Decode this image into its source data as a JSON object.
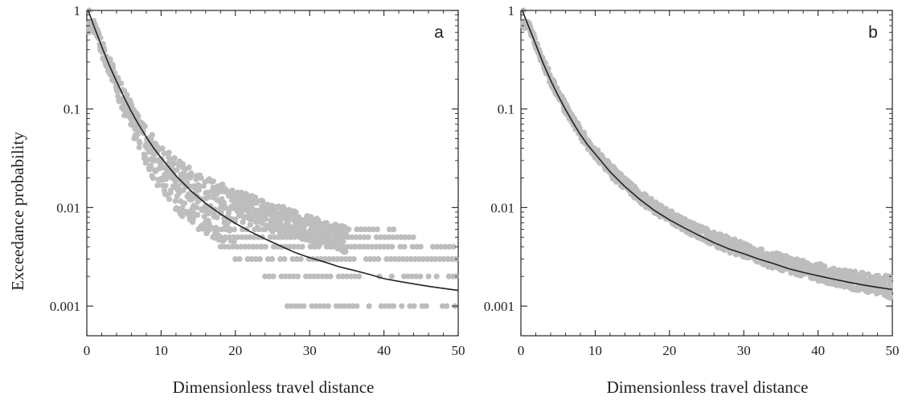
{
  "figure": {
    "ylabel": "Exceedance probability",
    "xlabel": "Dimensionless travel distance"
  },
  "chart_data": [
    {
      "type": "scatter",
      "panel": "a",
      "panel_label": "a",
      "xlabel": "Dimensionless travel distance",
      "ylabel": "Exceedance probability",
      "xlim": [
        0,
        50
      ],
      "ylim": [
        0.0005,
        1
      ],
      "yscale": "log",
      "x_ticks": [
        0,
        10,
        20,
        30,
        40,
        50
      ],
      "x_tick_labels": [
        "0",
        "10",
        "20",
        "30",
        "40",
        "50"
      ],
      "y_ticks": [
        1,
        0.1,
        0.01,
        0.001
      ],
      "y_tick_labels": [
        "1",
        "0.1",
        "0.01",
        "0.001"
      ],
      "grid": false,
      "series": [
        {
          "kind": "scatter-band",
          "color": "#bdbdbd",
          "points": [
            [
              0.2,
              1
            ],
            [
              1,
              0.7
            ],
            [
              2,
              0.42
            ],
            [
              3,
              0.27
            ],
            [
              4,
              0.18
            ],
            [
              5,
              0.12
            ],
            [
              6,
              0.083
            ],
            [
              7,
              0.06
            ],
            [
              8,
              0.044
            ],
            [
              9,
              0.034
            ],
            [
              10,
              0.027
            ],
            [
              11,
              0.022
            ],
            [
              12,
              0.018
            ],
            [
              13,
              0.015
            ],
            [
              14,
              0.0132
            ],
            [
              15,
              0.0118
            ],
            [
              16,
              0.0105
            ],
            [
              17,
              0.0095
            ],
            [
              18,
              0.0088
            ],
            [
              19,
              0.0082
            ],
            [
              20,
              0.0076
            ],
            [
              21,
              0.0071
            ],
            [
              22,
              0.0067
            ],
            [
              23,
              0.0063
            ],
            [
              24,
              0.006
            ],
            [
              25,
              0.0057
            ],
            [
              26,
              0.0054
            ],
            [
              27,
              0.0052
            ],
            [
              28,
              0.005
            ],
            [
              29,
              0.0048
            ],
            [
              30,
              0.0046
            ]
          ],
          "band_low": [
            [
              1,
              0.6
            ],
            [
              2,
              0.36
            ],
            [
              3,
              0.22
            ],
            [
              4,
              0.14
            ],
            [
              5,
              0.09
            ],
            [
              6,
              0.06
            ],
            [
              7,
              0.04
            ],
            [
              8,
              0.027
            ],
            [
              9,
              0.019
            ],
            [
              10,
              0.014
            ],
            [
              11,
              0.011
            ],
            [
              12,
              0.009
            ],
            [
              13,
              0.0078
            ],
            [
              14,
              0.0068
            ],
            [
              15,
              0.006
            ],
            [
              16,
              0.0055
            ],
            [
              17,
              0.005
            ],
            [
              18,
              0.0046
            ],
            [
              19,
              0.0043
            ],
            [
              20,
              0.004
            ]
          ],
          "band_high": [
            [
              1,
              0.8
            ],
            [
              2,
              0.5
            ],
            [
              3,
              0.33
            ],
            [
              4,
              0.23
            ],
            [
              5,
              0.16
            ],
            [
              6,
              0.115
            ],
            [
              7,
              0.085
            ],
            [
              8,
              0.066
            ],
            [
              9,
              0.053
            ],
            [
              10,
              0.044
            ],
            [
              11,
              0.037
            ],
            [
              12,
              0.032
            ],
            [
              13,
              0.028
            ],
            [
              14,
              0.025
            ],
            [
              15,
              0.023
            ],
            [
              16,
              0.021
            ],
            [
              17,
              0.0195
            ],
            [
              18,
              0.018
            ],
            [
              19,
              0.0168
            ],
            [
              20,
              0.0155
            ],
            [
              21,
              0.0145
            ],
            [
              22,
              0.0135
            ],
            [
              23,
              0.0125
            ],
            [
              24,
              0.0115
            ],
            [
              25,
              0.011
            ],
            [
              26,
              0.0104
            ],
            [
              27,
              0.0098
            ],
            [
              28,
              0.0092
            ],
            [
              29,
              0.0087
            ],
            [
              30,
              0.0082
            ],
            [
              31,
              0.0078
            ],
            [
              32,
              0.0074
            ],
            [
              33,
              0.007
            ],
            [
              34,
              0.0066
            ],
            [
              35,
              0.0063
            ]
          ],
          "discrete_rows": [
            {
              "y": 0.006,
              "x_min": 16,
              "x_max": 42
            },
            {
              "y": 0.005,
              "x_min": 17,
              "x_max": 44
            },
            {
              "y": 0.004,
              "x_min": 18,
              "x_max": 50
            },
            {
              "y": 0.003,
              "x_min": 20,
              "x_max": 50
            },
            {
              "y": 0.002,
              "x_min": 24,
              "x_max": 50
            },
            {
              "y": 0.001,
              "x_min": 27,
              "x_max": 50
            }
          ]
        },
        {
          "kind": "line",
          "color": "#222222",
          "points": [
            [
              0.2,
              1
            ],
            [
              0.5,
              0.86
            ],
            [
              1,
              0.68
            ],
            [
              1.5,
              0.54
            ],
            [
              2,
              0.43
            ],
            [
              3,
              0.28
            ],
            [
              4,
              0.19
            ],
            [
              5,
              0.132
            ],
            [
              6,
              0.094
            ],
            [
              7,
              0.069
            ],
            [
              8,
              0.052
            ],
            [
              9,
              0.04
            ],
            [
              10,
              0.032
            ],
            [
              12,
              0.021
            ],
            [
              14,
              0.0148
            ],
            [
              16,
              0.011
            ],
            [
              18,
              0.0086
            ],
            [
              20,
              0.0069
            ],
            [
              22,
              0.0057
            ],
            [
              24,
              0.0048
            ],
            [
              26,
              0.0041
            ],
            [
              28,
              0.0035
            ],
            [
              30,
              0.0031
            ],
            [
              32,
              0.0028
            ],
            [
              34,
              0.0025
            ],
            [
              36,
              0.0023
            ],
            [
              38,
              0.0021
            ],
            [
              40,
              0.0019
            ],
            [
              42,
              0.00178
            ],
            [
              44,
              0.00168
            ],
            [
              46,
              0.00159
            ],
            [
              48,
              0.00151
            ],
            [
              50,
              0.00144
            ]
          ]
        }
      ]
    },
    {
      "type": "scatter",
      "panel": "b",
      "panel_label": "b",
      "xlabel": "Dimensionless travel distance",
      "ylabel": "",
      "xlim": [
        0,
        50
      ],
      "ylim": [
        0.0005,
        1
      ],
      "yscale": "log",
      "x_ticks": [
        0,
        10,
        20,
        30,
        40,
        50
      ],
      "x_tick_labels": [
        "0",
        "10",
        "20",
        "30",
        "40",
        "50"
      ],
      "y_ticks": [
        1,
        0.1,
        0.01,
        0.001
      ],
      "y_tick_labels": [
        "1",
        "0.1",
        "0.01",
        "0.001"
      ],
      "grid": false,
      "series": [
        {
          "kind": "scatter-band",
          "color": "#bdbdbd",
          "points": [
            [
              0.2,
              1
            ],
            [
              1,
              0.72
            ],
            [
              2,
              0.46
            ],
            [
              3,
              0.3
            ],
            [
              4,
              0.2
            ],
            [
              5,
              0.14
            ],
            [
              6,
              0.1
            ],
            [
              7,
              0.075
            ],
            [
              8,
              0.057
            ],
            [
              9,
              0.045
            ],
            [
              10,
              0.036
            ],
            [
              12,
              0.024
            ],
            [
              14,
              0.017
            ],
            [
              16,
              0.0128
            ],
            [
              18,
              0.0099
            ],
            [
              20,
              0.008
            ],
            [
              22,
              0.0066
            ],
            [
              24,
              0.0055
            ],
            [
              26,
              0.0047
            ],
            [
              28,
              0.0041
            ],
            [
              30,
              0.0036
            ],
            [
              32,
              0.0032
            ],
            [
              34,
              0.0029
            ],
            [
              36,
              0.0026
            ],
            [
              38,
              0.0024
            ],
            [
              40,
              0.0022
            ],
            [
              42,
              0.002
            ],
            [
              44,
              0.0019
            ],
            [
              46,
              0.00175
            ],
            [
              48,
              0.00165
            ],
            [
              50,
              0.00155
            ]
          ],
          "band_low": [
            [
              1,
              0.66
            ],
            [
              2,
              0.42
            ],
            [
              3,
              0.27
            ],
            [
              4,
              0.18
            ],
            [
              5,
              0.125
            ],
            [
              6,
              0.09
            ],
            [
              7,
              0.067
            ],
            [
              8,
              0.051
            ],
            [
              9,
              0.04
            ],
            [
              10,
              0.032
            ],
            [
              12,
              0.021
            ],
            [
              14,
              0.015
            ],
            [
              16,
              0.0112
            ],
            [
              18,
              0.0087
            ],
            [
              20,
              0.007
            ],
            [
              22,
              0.0058
            ],
            [
              24,
              0.0048
            ],
            [
              26,
              0.0041
            ],
            [
              28,
              0.0035
            ],
            [
              30,
              0.0031
            ],
            [
              32,
              0.0027
            ],
            [
              34,
              0.0024
            ],
            [
              36,
              0.0022
            ],
            [
              38,
              0.002
            ],
            [
              40,
              0.0018
            ],
            [
              42,
              0.00165
            ],
            [
              44,
              0.0015
            ],
            [
              46,
              0.0014
            ],
            [
              48,
              0.0013
            ],
            [
              50,
              0.0012
            ]
          ],
          "band_high": [
            [
              1,
              0.78
            ],
            [
              2,
              0.5
            ],
            [
              3,
              0.33
            ],
            [
              4,
              0.23
            ],
            [
              5,
              0.16
            ],
            [
              6,
              0.115
            ],
            [
              7,
              0.085
            ],
            [
              8,
              0.065
            ],
            [
              9,
              0.051
            ],
            [
              10,
              0.041
            ],
            [
              12,
              0.028
            ],
            [
              14,
              0.02
            ],
            [
              16,
              0.015
            ],
            [
              18,
              0.0116
            ],
            [
              20,
              0.0094
            ],
            [
              22,
              0.0078
            ],
            [
              24,
              0.0066
            ],
            [
              26,
              0.0057
            ],
            [
              28,
              0.005
            ],
            [
              30,
              0.0044
            ],
            [
              32,
              0.0039
            ],
            [
              34,
              0.0035
            ],
            [
              36,
              0.0032
            ],
            [
              38,
              0.0029
            ],
            [
              40,
              0.0027
            ],
            [
              42,
              0.0025
            ],
            [
              44,
              0.0023
            ],
            [
              46,
              0.0022
            ],
            [
              48,
              0.0021
            ],
            [
              50,
              0.002
            ]
          ],
          "discrete_rows": []
        },
        {
          "kind": "line",
          "color": "#222222",
          "points": [
            [
              0.2,
              1
            ],
            [
              0.5,
              0.87
            ],
            [
              1,
              0.7
            ],
            [
              1.5,
              0.56
            ],
            [
              2,
              0.45
            ],
            [
              3,
              0.29
            ],
            [
              4,
              0.195
            ],
            [
              5,
              0.137
            ],
            [
              6,
              0.099
            ],
            [
              7,
              0.073
            ],
            [
              8,
              0.055
            ],
            [
              9,
              0.043
            ],
            [
              10,
              0.035
            ],
            [
              12,
              0.023
            ],
            [
              14,
              0.0163
            ],
            [
              16,
              0.0121
            ],
            [
              18,
              0.0093
            ],
            [
              20,
              0.0075
            ],
            [
              22,
              0.0062
            ],
            [
              24,
              0.0052
            ],
            [
              26,
              0.0044
            ],
            [
              28,
              0.0038
            ],
            [
              30,
              0.0034
            ],
            [
              32,
              0.003
            ],
            [
              34,
              0.0027
            ],
            [
              36,
              0.0024
            ],
            [
              38,
              0.0022
            ],
            [
              40,
              0.00203
            ],
            [
              42,
              0.00188
            ],
            [
              44,
              0.00175
            ],
            [
              46,
              0.00164
            ],
            [
              48,
              0.00155
            ],
            [
              50,
              0.00147
            ]
          ]
        }
      ]
    }
  ]
}
